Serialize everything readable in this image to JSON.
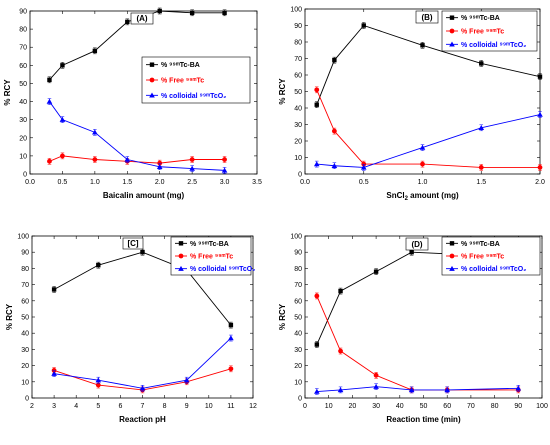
{
  "chart_data": [
    {
      "type": "line",
      "panel_label": "(A)",
      "xlabel": "Baicalin amount (mg)",
      "xlabel_sub": "",
      "xlabel_suffix": "",
      "ylabel": "% RCY",
      "xlim": [
        0.0,
        3.5
      ],
      "ylim": [
        0,
        90
      ],
      "xticks": [
        "0.0",
        "0.5",
        "1.0",
        "1.5",
        "2.0",
        "2.5",
        "3.0",
        "3.5"
      ],
      "yticks": [
        "0",
        "10",
        "20",
        "30",
        "40",
        "50",
        "60",
        "70",
        "80",
        "90"
      ],
      "legend_position": "middle-right",
      "series": [
        {
          "name": "% ⁹⁹ᵐTc-BA",
          "color": "#000000",
          "marker": "square",
          "x": [
            0.3,
            0.5,
            1.0,
            1.5,
            2.0,
            2.5,
            3.0
          ],
          "values": [
            52,
            60,
            68,
            84,
            90,
            89,
            89
          ]
        },
        {
          "name": "% Free ⁹⁹ᵐTc",
          "color": "#ff0000",
          "marker": "circle",
          "x": [
            0.3,
            0.5,
            1.0,
            1.5,
            2.0,
            2.5,
            3.0
          ],
          "values": [
            7,
            10,
            8,
            7,
            6,
            8,
            8
          ]
        },
        {
          "name": "% colloidal ⁹⁹ᵐTcO₂",
          "color": "#0000ff",
          "marker": "triangle",
          "x": [
            0.3,
            0.5,
            1.0,
            1.5,
            2.0,
            2.5,
            3.0
          ],
          "values": [
            40,
            30,
            23,
            8,
            4,
            3,
            2
          ]
        }
      ]
    },
    {
      "type": "line",
      "panel_label": "(B)",
      "xlabel": "SnCl",
      "xlabel_sub": "2",
      "xlabel_suffix": " amount (mg)",
      "ylabel": "% RCY",
      "xlim": [
        0.0,
        2.0
      ],
      "ylim": [
        0,
        100
      ],
      "xticks": [
        "0.0",
        "0.5",
        "1.0",
        "1.5",
        "2.0"
      ],
      "yticks": [
        "0",
        "10",
        "20",
        "30",
        "40",
        "50",
        "60",
        "70",
        "80",
        "90",
        "100"
      ],
      "legend_position": "top-right",
      "series": [
        {
          "name": "% ⁹⁹ᵐTc-BA",
          "color": "#000000",
          "marker": "square",
          "x": [
            0.1,
            0.25,
            0.5,
            1.0,
            1.5,
            2.0
          ],
          "values": [
            42,
            69,
            90,
            78,
            67,
            59
          ]
        },
        {
          "name": "% Free ⁹⁹ᵐTc",
          "color": "#ff0000",
          "marker": "circle",
          "x": [
            0.1,
            0.25,
            0.5,
            1.0,
            1.5,
            2.0
          ],
          "values": [
            51,
            26,
            6,
            6,
            4,
            4
          ]
        },
        {
          "name": "% colloidal ⁹⁹ᵐTcO₂",
          "color": "#0000ff",
          "marker": "triangle",
          "x": [
            0.1,
            0.25,
            0.5,
            1.0,
            1.5,
            2.0
          ],
          "values": [
            6,
            5,
            4,
            16,
            28,
            36
          ]
        }
      ]
    },
    {
      "type": "line",
      "panel_label": "[C]",
      "xlabel": "Reaction pH",
      "xlabel_sub": "",
      "xlabel_suffix": "",
      "ylabel": "% RCY",
      "xlim": [
        2,
        12
      ],
      "ylim": [
        0,
        100
      ],
      "xticks": [
        "2",
        "3",
        "4",
        "5",
        "6",
        "7",
        "8",
        "9",
        "10",
        "11",
        "12"
      ],
      "yticks": [
        "0",
        "10",
        "20",
        "30",
        "40",
        "50",
        "60",
        "70",
        "80",
        "90",
        "100"
      ],
      "legend_position": "top-right",
      "series": [
        {
          "name": "% ⁹⁹ᵐTc-BA",
          "color": "#000000",
          "marker": "square",
          "x": [
            3,
            5,
            7,
            9,
            11
          ],
          "values": [
            67,
            82,
            90,
            79,
            45
          ]
        },
        {
          "name": "% Free ⁹⁹ᵐTc",
          "color": "#ff0000",
          "marker": "circle",
          "x": [
            3,
            5,
            7,
            9,
            11
          ],
          "values": [
            17,
            8,
            5,
            10,
            18
          ]
        },
        {
          "name": "% colloidal ⁹⁹ᵐTcO₂",
          "color": "#0000ff",
          "marker": "triangle",
          "x": [
            3,
            5,
            7,
            9,
            11
          ],
          "values": [
            15,
            11,
            6,
            11,
            37
          ]
        }
      ]
    },
    {
      "type": "line",
      "panel_label": "(D)",
      "xlabel": "Reaction time (min)",
      "xlabel_sub": "",
      "xlabel_suffix": "",
      "ylabel": "% RCY",
      "xlim": [
        0,
        100
      ],
      "ylim": [
        0,
        100
      ],
      "xticks": [
        "0",
        "10",
        "20",
        "30",
        "40",
        "50",
        "60",
        "70",
        "80",
        "90",
        "100"
      ],
      "yticks": [
        "0",
        "10",
        "20",
        "30",
        "40",
        "50",
        "60",
        "70",
        "80",
        "90",
        "100"
      ],
      "legend_position": "top-right",
      "series": [
        {
          "name": "% ⁹⁹ᵐTc-BA",
          "color": "#000000",
          "marker": "square",
          "x": [
            5,
            15,
            30,
            45,
            60,
            90
          ],
          "values": [
            33,
            66,
            78,
            90,
            89,
            89
          ]
        },
        {
          "name": "% Free ⁹⁹ᵐTc",
          "color": "#ff0000",
          "marker": "circle",
          "x": [
            5,
            15,
            30,
            45,
            60,
            90
          ],
          "values": [
            63,
            29,
            14,
            5,
            5,
            5
          ]
        },
        {
          "name": "% colloidal ⁹⁹ᵐTcO₂",
          "color": "#0000ff",
          "marker": "triangle",
          "x": [
            5,
            15,
            30,
            45,
            60,
            90
          ],
          "values": [
            4,
            5,
            7,
            5,
            5,
            6
          ]
        }
      ]
    }
  ]
}
